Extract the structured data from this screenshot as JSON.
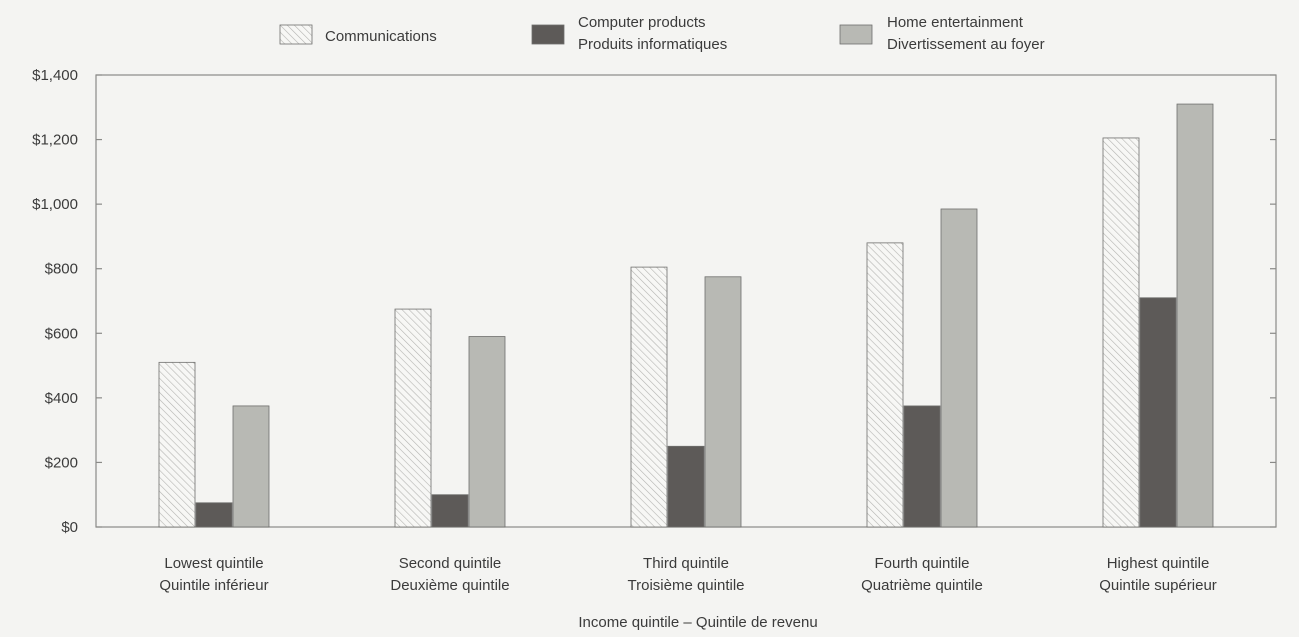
{
  "chart_data": {
    "type": "bar",
    "categories": [
      [
        "Lowest quintile",
        "Quintile inférieur"
      ],
      [
        "Second quintile",
        "Deuxième quintile"
      ],
      [
        "Third quintile",
        "Troisième quintile"
      ],
      [
        "Fourth quintile",
        "Quatrième quintile"
      ],
      [
        "Highest quintile",
        "Quintile supérieur"
      ]
    ],
    "series": [
      {
        "legend_lines": [
          "Communications"
        ],
        "values": [
          510,
          675,
          805,
          880,
          1205
        ],
        "fill": "hatch",
        "color": "#f7f7f5",
        "hatch_color": "#b5b5b2"
      },
      {
        "legend_lines": [
          "Computer products",
          "Produits informatiques"
        ],
        "values": [
          75,
          100,
          250,
          375,
          710
        ],
        "fill": "solid",
        "color": "#5d5a58"
      },
      {
        "legend_lines": [
          "Home entertainment",
          "Divertissement au foyer"
        ],
        "values": [
          375,
          590,
          775,
          985,
          1310
        ],
        "fill": "solid",
        "color": "#b8b9b4"
      }
    ],
    "xlabel": "Income quintile – Quintile de revenu",
    "ylabel": "",
    "ylim": [
      0,
      1400
    ],
    "yticks": [
      0,
      200,
      400,
      600,
      800,
      1000,
      1200,
      1400
    ],
    "ytick_labels": [
      "$0",
      "$200",
      "$400",
      "$600",
      "$800",
      "$1,000",
      "$1,200",
      "$1,400"
    ],
    "grid": false,
    "legend_position": "top-center"
  }
}
